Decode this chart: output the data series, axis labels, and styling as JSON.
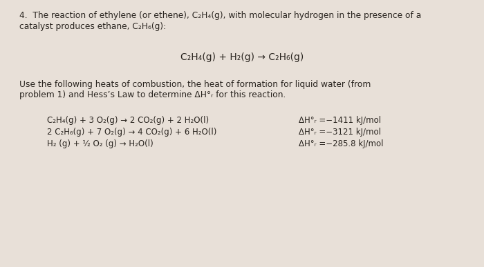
{
  "background_color": "#c8c0b8",
  "paper_color": "#e8e0d8",
  "text_color": "#2a2520",
  "title_line1": "4.  The reaction of ethylene (or ethene), C₂H₄(g), with molecular hydrogen in the presence of a",
  "title_line2": "catalyst produces ethane, C₂H₆(g):",
  "main_equation": "C₂H₄(g) + H₂(g) → C₂H₆(g)",
  "instruction_line1": "Use the following heats of combustion, the heat of formation for liquid water (from",
  "instruction_line2": "problem 1) and Hess’s Law to determine ΔH°ᵣ for this reaction.",
  "reaction1_eq": "C₂H₄(g) + 3 O₂(g) → 2 CO₂(g) + 2 H₂O(l)",
  "reaction1_dh": "ΔH°ᵣ =−1411 kJ/mol",
  "reaction2_eq": "2 C₂H₆(g) + 7 O₂(g) → 4 CO₂(g) + 6 H₂O(l)",
  "reaction2_dh": "ΔH°ᵣ =−3121 kJ/mol",
  "reaction3_eq": "H₂ (g) + ½ O₂ (g) → H₂O(l)",
  "reaction3_dh": "ΔH°ᵣ =−285.8 kJ/mol",
  "fontsize_body": 8.8,
  "fontsize_equation": 10.0,
  "fontsize_reactions": 8.5
}
